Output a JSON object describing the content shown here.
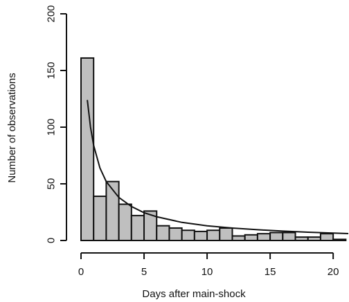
{
  "chart_data": {
    "type": "bar",
    "title": "",
    "xlabel": "Days after main-shock",
    "ylabel": "Number of observations",
    "xlim": [
      0,
      21.2
    ],
    "ylim": [
      0,
      200
    ],
    "x_ticks": [
      0,
      5,
      10,
      15,
      20
    ],
    "y_ticks": [
      0,
      50,
      100,
      150,
      200
    ],
    "bin_width": 1,
    "bins": [
      {
        "start": 0,
        "end": 1,
        "value": 161
      },
      {
        "start": 1,
        "end": 2,
        "value": 39
      },
      {
        "start": 2,
        "end": 3,
        "value": 52
      },
      {
        "start": 3,
        "end": 4,
        "value": 32
      },
      {
        "start": 4,
        "end": 5,
        "value": 22
      },
      {
        "start": 5,
        "end": 6,
        "value": 26
      },
      {
        "start": 6,
        "end": 7,
        "value": 13
      },
      {
        "start": 7,
        "end": 8,
        "value": 11
      },
      {
        "start": 8,
        "end": 9,
        "value": 9
      },
      {
        "start": 9,
        "end": 10,
        "value": 8
      },
      {
        "start": 10,
        "end": 11,
        "value": 9
      },
      {
        "start": 11,
        "end": 12,
        "value": 11
      },
      {
        "start": 12,
        "end": 13,
        "value": 4
      },
      {
        "start": 13,
        "end": 14,
        "value": 5
      },
      {
        "start": 14,
        "end": 15,
        "value": 6
      },
      {
        "start": 15,
        "end": 16,
        "value": 7
      },
      {
        "start": 16,
        "end": 17,
        "value": 7
      },
      {
        "start": 17,
        "end": 18,
        "value": 3
      },
      {
        "start": 18,
        "end": 19,
        "value": 3
      },
      {
        "start": 19,
        "end": 20,
        "value": 6
      },
      {
        "start": 20,
        "end": 21,
        "value": 1
      }
    ],
    "fit_curve": {
      "x": [
        0.5,
        0.75,
        1.0,
        1.5,
        2.0,
        3.0,
        4.0,
        5.0,
        6.0,
        8.0,
        10.0,
        12.0,
        14.0,
        16.0,
        18.0,
        20.0,
        21.2
      ],
      "y": [
        124,
        100,
        84,
        64,
        52,
        38,
        30,
        24.5,
        21,
        16,
        13,
        11,
        9.5,
        8.3,
        7.3,
        6.5,
        6.1
      ]
    },
    "colors": {
      "bar_fill": "#bfbfbf",
      "bar_stroke": "#111111",
      "curve": "#111111",
      "axis": "#111111"
    },
    "grid": false
  }
}
